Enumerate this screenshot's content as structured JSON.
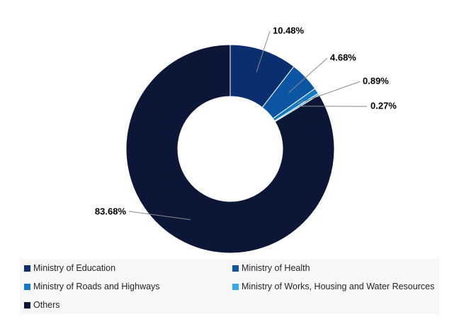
{
  "chart_data": {
    "type": "pie",
    "donut": true,
    "slices": [
      {
        "label": "Ministry of Education",
        "value": 10.48,
        "display": "10.48%",
        "color": "#0b2f6e"
      },
      {
        "label": "Ministry of Health",
        "value": 4.68,
        "display": "4.68%",
        "color": "#0c55a3"
      },
      {
        "label": "Ministry of Roads and Highways",
        "value": 0.89,
        "display": "0.89%",
        "color": "#1479c2"
      },
      {
        "label": "Ministry of Works, Housing and Water Resources",
        "value": 0.27,
        "display": "0.27%",
        "color": "#3aa8e6"
      },
      {
        "label": "Others",
        "value": 83.68,
        "display": "83.68%",
        "color": "#0c1738"
      }
    ],
    "legend_position": "bottom"
  }
}
